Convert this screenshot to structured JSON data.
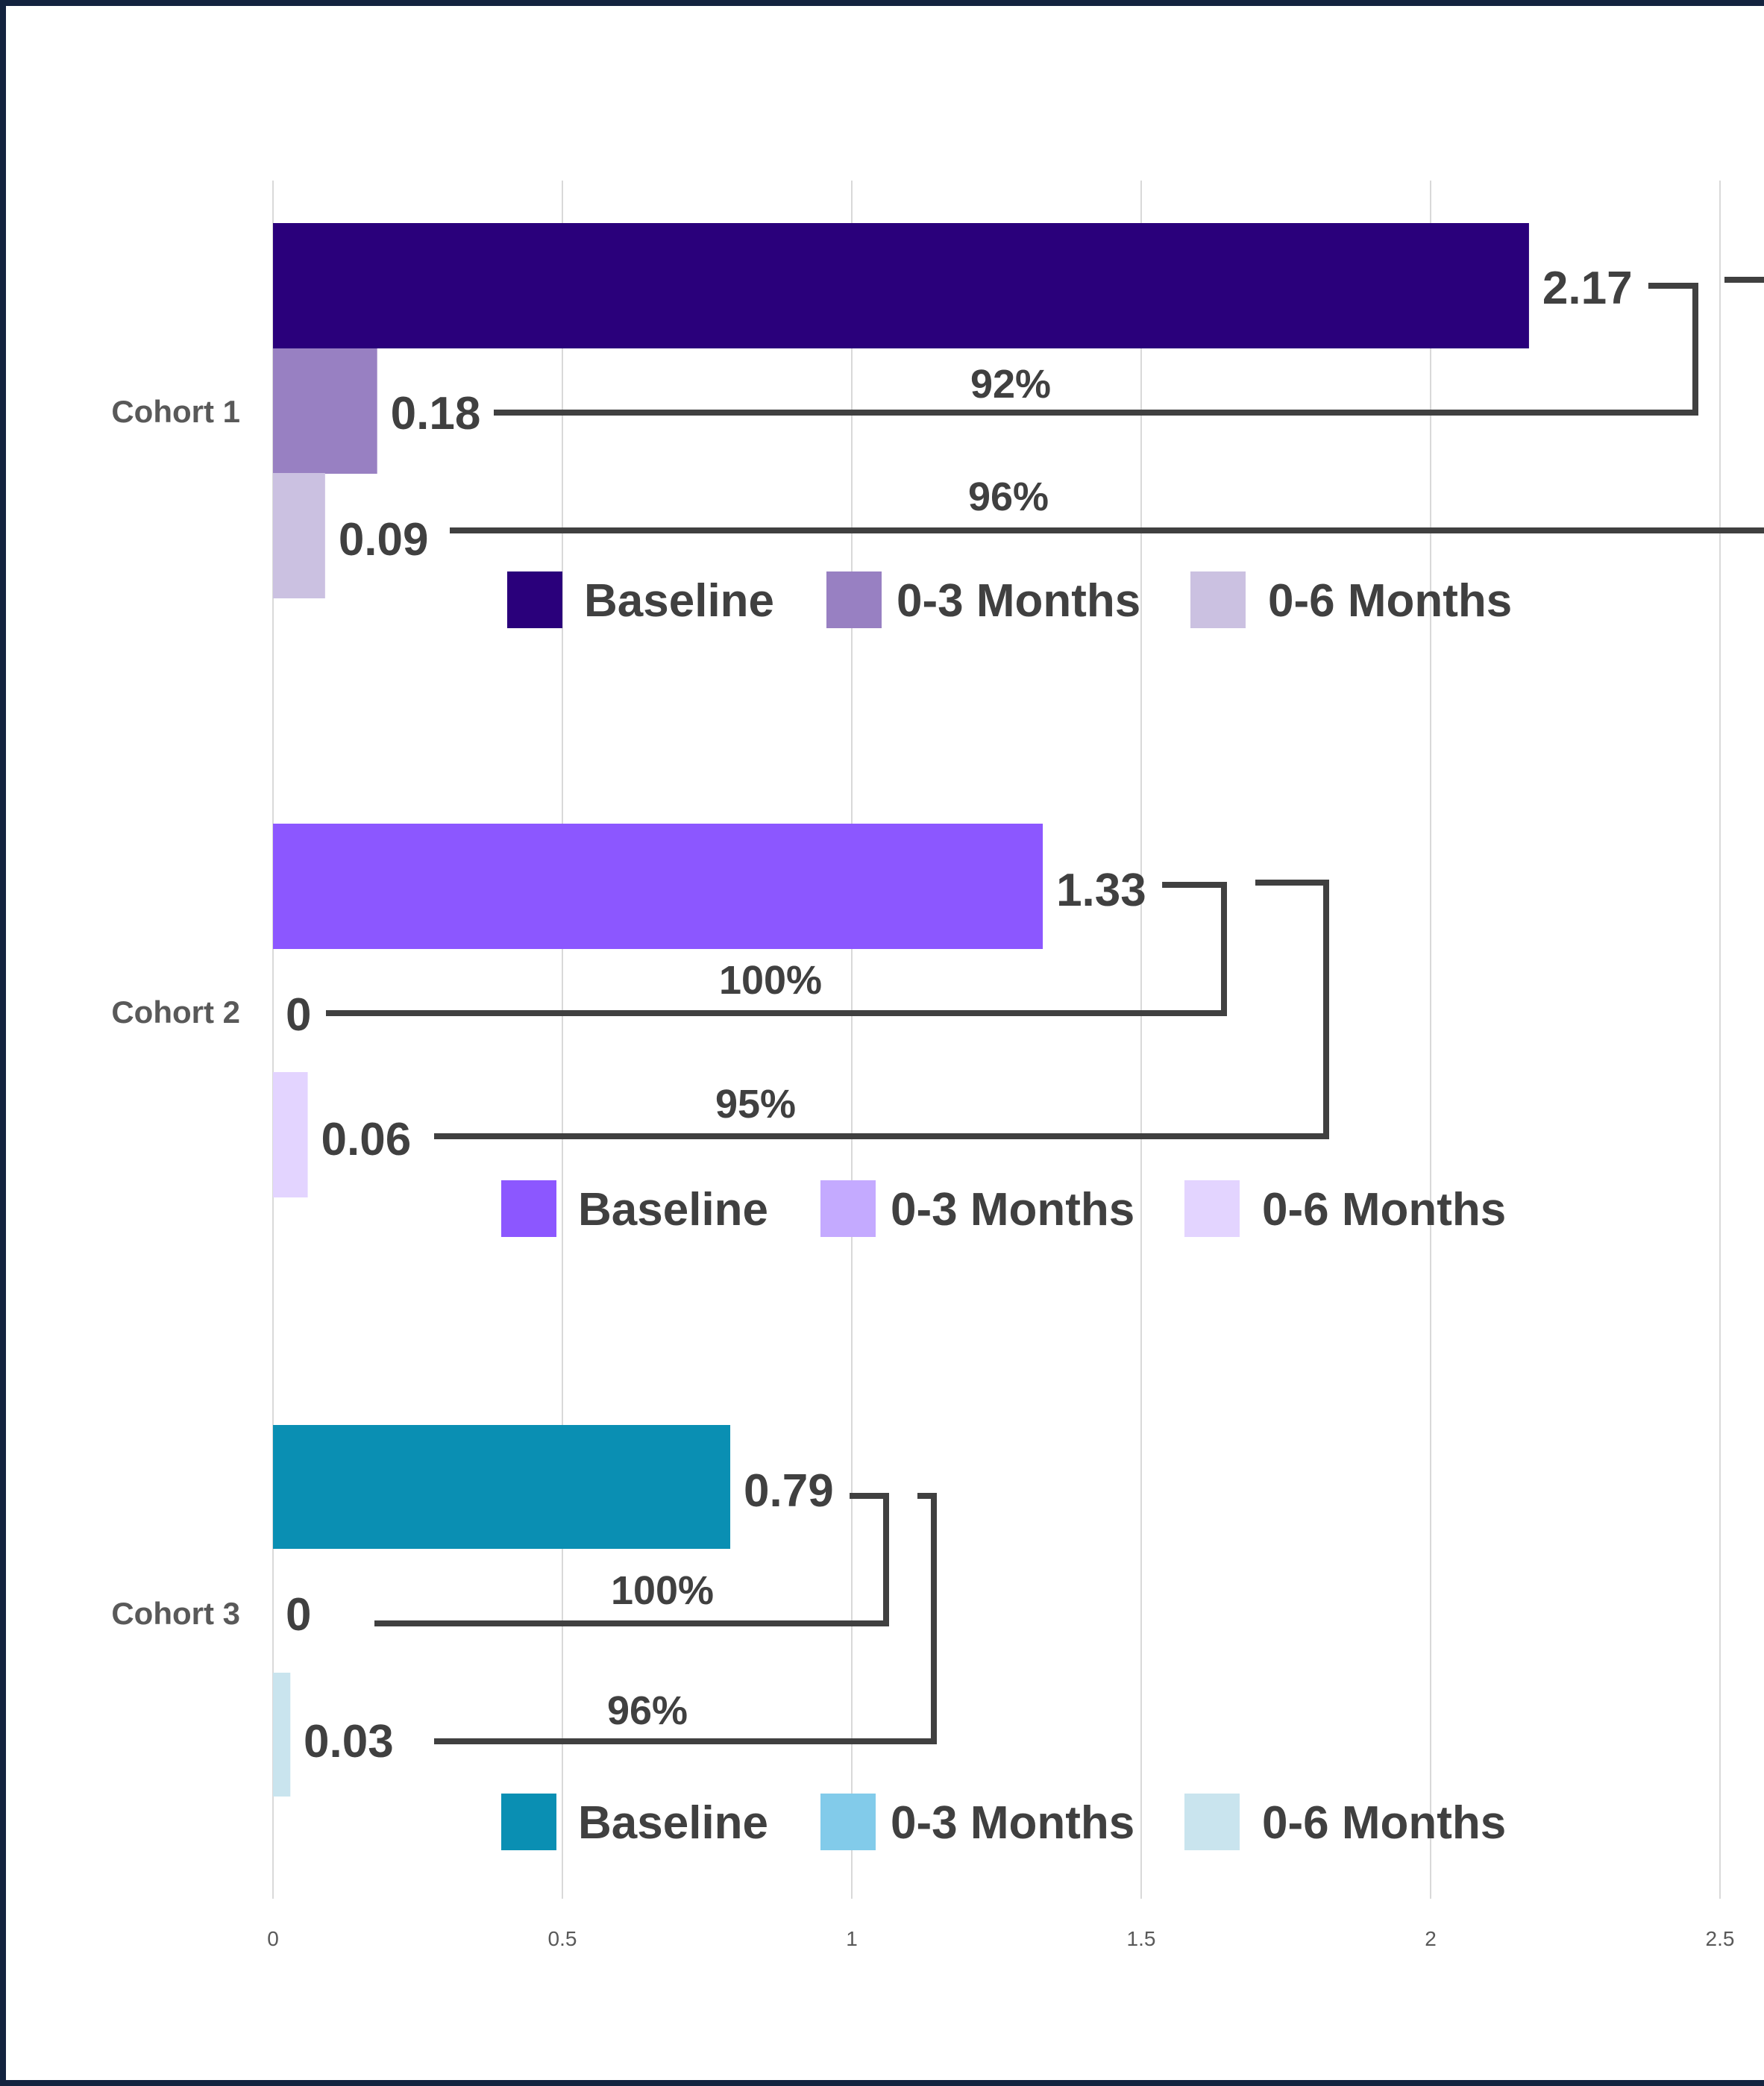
{
  "chart_data": {
    "type": "bar",
    "orientation": "horizontal",
    "categories": [
      "Cohort 1",
      "Cohort 2",
      "Cohort 3"
    ],
    "series_labels": [
      "Baseline",
      "0-3 Months",
      "0-6 Months"
    ],
    "x_ticks": [
      "0",
      "0.5",
      "1",
      "1.5",
      "2",
      "2.5"
    ],
    "xlim": [
      0,
      2.5
    ],
    "grid": true,
    "groups": [
      {
        "category": "Cohort 1",
        "values": [
          2.17,
          0.18,
          0.09
        ],
        "labels": [
          "2.17",
          "0.18",
          "0.09"
        ],
        "colors": [
          "#2a007b",
          "#9880c2",
          "#cbc1e1"
        ],
        "reductions": [
          "92%",
          "96%"
        ]
      },
      {
        "category": "Cohort 2",
        "values": [
          1.33,
          0,
          0.06
        ],
        "labels": [
          "1.33",
          "0",
          "0.06"
        ],
        "colors": [
          "#8c57ff",
          "#c4aaff",
          "#e3d4ff"
        ],
        "reductions": [
          "100%",
          "95%"
        ]
      },
      {
        "category": "Cohort 3",
        "values": [
          0.79,
          0,
          0.03
        ],
        "labels": [
          "0.79",
          "0",
          "0.03"
        ],
        "colors": [
          "#0a8fb3",
          "#82cbea",
          "#c9e4ee"
        ],
        "reductions": [
          "100%",
          "96%"
        ]
      }
    ]
  }
}
